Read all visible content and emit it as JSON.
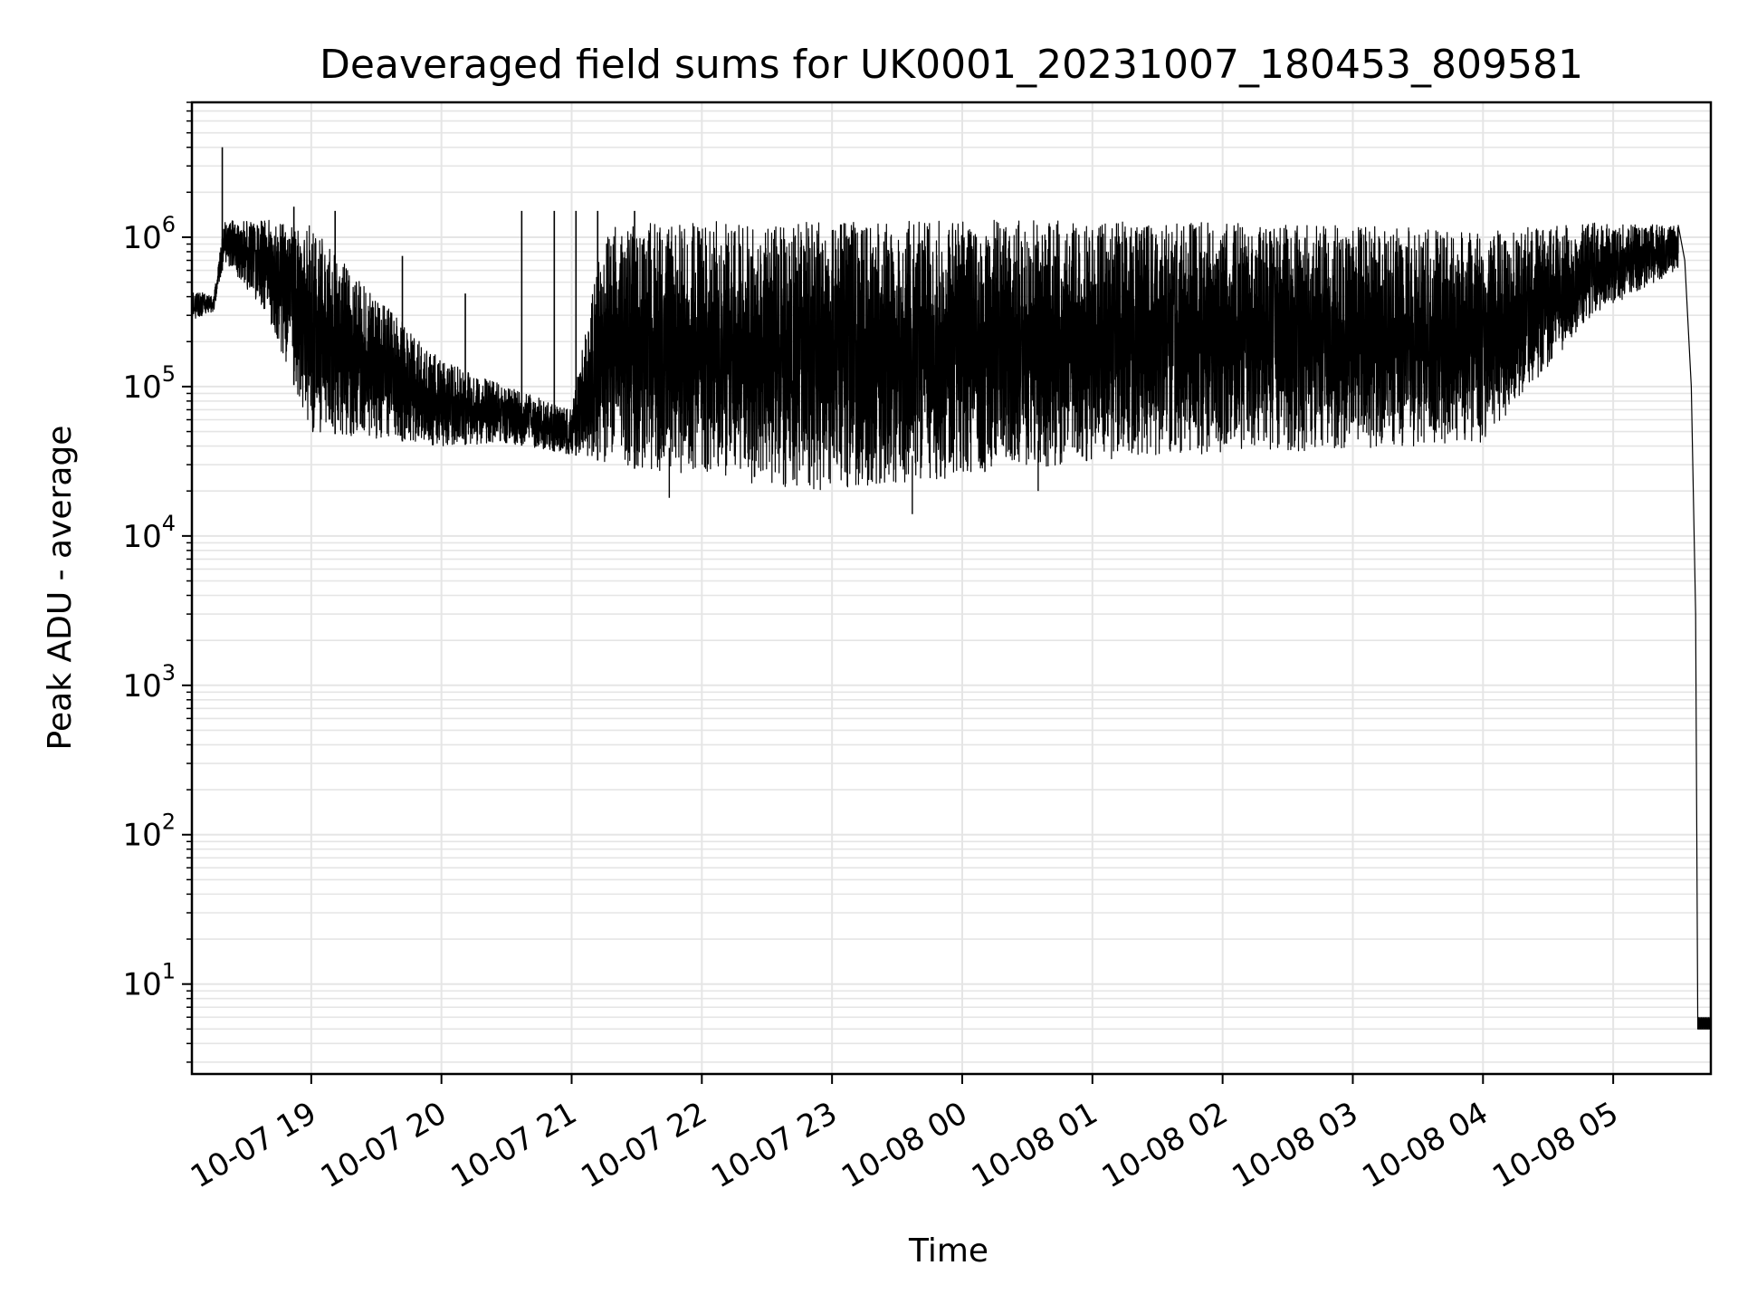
{
  "chart_data": {
    "type": "line",
    "title": "Deaveraged field sums for UK0001_20231007_180453_809581",
    "xlabel": "Time",
    "ylabel": "Peak ADU - average",
    "y_scale": "log",
    "ylim": [
      2.5,
      8000000
    ],
    "xlim": [
      "2023-10-07 18:05",
      "2023-10-08 05:45"
    ],
    "grid": "on",
    "legend": "none",
    "line_color": "#000000",
    "grid_color": "#e5e5e5",
    "x_ticks": [
      "2023-10-07 19:00",
      "2023-10-07 20:00",
      "2023-10-07 21:00",
      "2023-10-07 22:00",
      "2023-10-07 23:00",
      "2023-10-08 00:00",
      "2023-10-08 01:00",
      "2023-10-08 02:00",
      "2023-10-08 03:00",
      "2023-10-08 04:00",
      "2023-10-08 05:00"
    ],
    "x_tick_labels": [
      "10-07 19",
      "10-07 20",
      "10-07 21",
      "10-07 22",
      "10-07 23",
      "10-08 00",
      "10-08 01",
      "10-08 02",
      "10-08 03",
      "10-08 04",
      "10-08 05"
    ],
    "y_ticks": [
      10,
      100,
      1000,
      10000,
      100000,
      1000000
    ],
    "y_tick_labels": [
      {
        "base": "10",
        "exp": "1"
      },
      {
        "base": "10",
        "exp": "2"
      },
      {
        "base": "10",
        "exp": "3"
      },
      {
        "base": "10",
        "exp": "4"
      },
      {
        "base": "10",
        "exp": "5"
      },
      {
        "base": "10",
        "exp": "6"
      }
    ],
    "series": [
      {
        "band_upper": [
          {
            "x": "2023-10-07 18:05",
            "y": 450000
          },
          {
            "x": "2023-10-07 18:15",
            "y": 400000
          },
          {
            "x": "2023-10-07 18:20",
            "y": 1300000
          },
          {
            "x": "2023-10-07 18:40",
            "y": 1300000
          },
          {
            "x": "2023-10-07 19:00",
            "y": 1200000
          },
          {
            "x": "2023-10-07 19:30",
            "y": 400000
          },
          {
            "x": "2023-10-07 20:00",
            "y": 150000
          },
          {
            "x": "2023-10-07 20:30",
            "y": 100000
          },
          {
            "x": "2023-10-07 21:00",
            "y": 70000
          },
          {
            "x": "2023-10-07 21:15",
            "y": 1200000
          },
          {
            "x": "2023-10-07 22:00",
            "y": 1300000
          },
          {
            "x": "2023-10-07 23:00",
            "y": 1250000
          },
          {
            "x": "2023-10-08 00:00",
            "y": 1300000
          },
          {
            "x": "2023-10-08 01:00",
            "y": 1300000
          },
          {
            "x": "2023-10-08 02:00",
            "y": 1250000
          },
          {
            "x": "2023-10-08 03:00",
            "y": 1200000
          },
          {
            "x": "2023-10-08 04:00",
            "y": 1100000
          },
          {
            "x": "2023-10-08 04:50",
            "y": 1250000
          },
          {
            "x": "2023-10-08 05:30",
            "y": 1200000
          }
        ],
        "band_lower": [
          {
            "x": "2023-10-07 18:05",
            "y": 280000
          },
          {
            "x": "2023-10-07 18:15",
            "y": 320000
          },
          {
            "x": "2023-10-07 18:20",
            "y": 700000
          },
          {
            "x": "2023-10-07 18:40",
            "y": 300000
          },
          {
            "x": "2023-10-07 19:00",
            "y": 50000
          },
          {
            "x": "2023-10-07 19:30",
            "y": 45000
          },
          {
            "x": "2023-10-07 20:00",
            "y": 40000
          },
          {
            "x": "2023-10-07 20:30",
            "y": 42000
          },
          {
            "x": "2023-10-07 21:00",
            "y": 35000
          },
          {
            "x": "2023-10-07 21:30",
            "y": 28000
          },
          {
            "x": "2023-10-07 22:00",
            "y": 24000
          },
          {
            "x": "2023-10-07 23:00",
            "y": 20000
          },
          {
            "x": "2023-10-08 00:00",
            "y": 25000
          },
          {
            "x": "2023-10-08 01:00",
            "y": 32000
          },
          {
            "x": "2023-10-08 02:00",
            "y": 36000
          },
          {
            "x": "2023-10-08 03:00",
            "y": 38000
          },
          {
            "x": "2023-10-08 04:00",
            "y": 42000
          },
          {
            "x": "2023-10-08 04:50",
            "y": 300000
          },
          {
            "x": "2023-10-08 05:30",
            "y": 600000
          }
        ],
        "spikes": [
          {
            "x": "2023-10-07 18:19",
            "y": 4000000
          },
          {
            "x": "2023-10-07 18:52",
            "y": 1600000
          },
          {
            "x": "2023-10-07 19:11",
            "y": 1500000
          },
          {
            "x": "2023-10-07 19:42",
            "y": 750000
          },
          {
            "x": "2023-10-07 20:11",
            "y": 420000
          },
          {
            "x": "2023-10-07 20:37",
            "y": 1500000
          },
          {
            "x": "2023-10-07 20:52",
            "y": 1500000
          },
          {
            "x": "2023-10-07 21:02",
            "y": 1500000
          },
          {
            "x": "2023-10-07 21:12",
            "y": 1500000
          },
          {
            "x": "2023-10-07 21:29",
            "y": 1500000
          }
        ],
        "dips": [
          {
            "x": "2023-10-07 21:45",
            "y": 18000
          },
          {
            "x": "2023-10-07 23:37",
            "y": 14000
          },
          {
            "x": "2023-10-08 00:35",
            "y": 20000
          }
        ],
        "tail": [
          {
            "x": "2023-10-08 05:30",
            "y": 1200000
          },
          {
            "x": "2023-10-08 05:33",
            "y": 700000
          },
          {
            "x": "2023-10-08 05:36",
            "y": 100000
          },
          {
            "x": "2023-10-08 05:38",
            "y": 3000
          },
          {
            "x": "2023-10-08 05:39",
            "y": 5
          },
          {
            "x": "2023-10-08 05:45",
            "y": 5
          }
        ]
      }
    ]
  }
}
